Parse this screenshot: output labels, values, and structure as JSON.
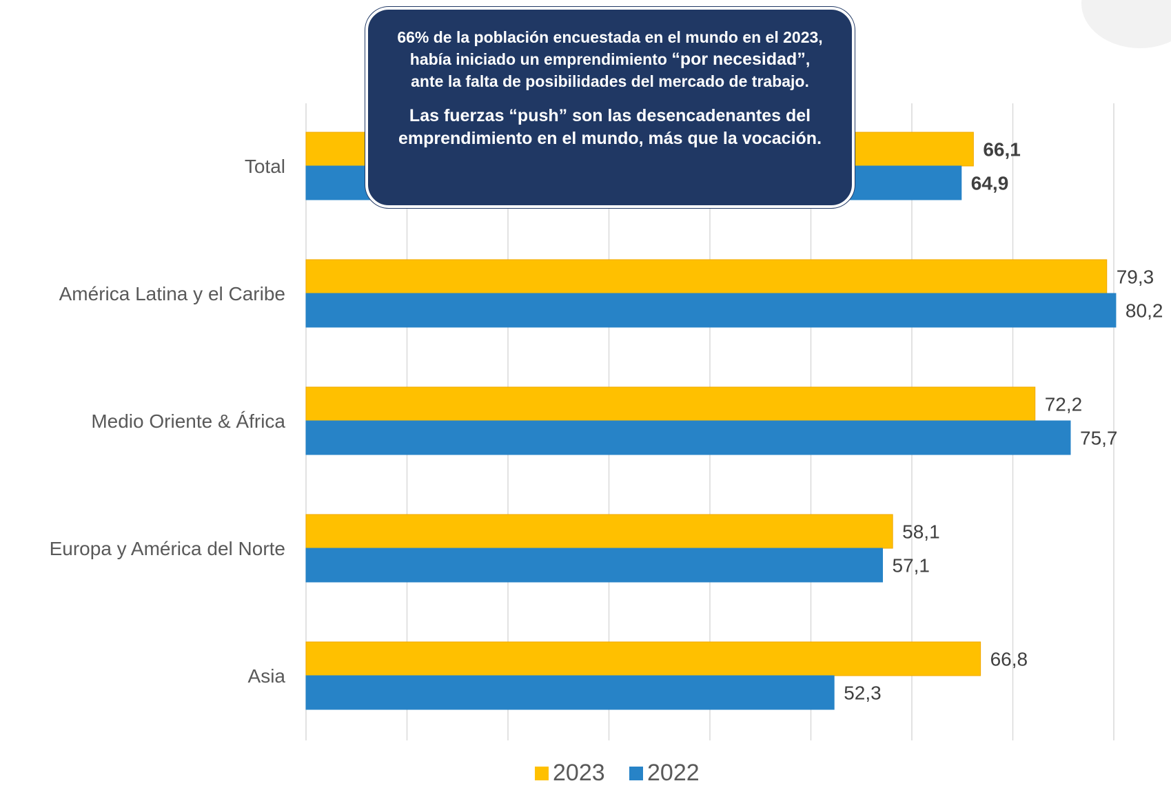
{
  "chart_data": {
    "type": "bar",
    "orientation": "horizontal",
    "categories": [
      "Total",
      "América Latina y el Caribe",
      "Medio Oriente & África",
      "Europa y América del Norte",
      "Asia"
    ],
    "series": [
      {
        "name": "2023",
        "color": "#FFC000",
        "values": [
          66.1,
          79.3,
          72.2,
          58.1,
          66.8
        ],
        "labels": [
          "66,1",
          "79,3",
          "72,2",
          "58,1",
          "66,8"
        ]
      },
      {
        "name": "2022",
        "color": "#2783C7",
        "values": [
          64.9,
          80.2,
          75.7,
          57.1,
          52.3
        ],
        "labels": [
          "64,9",
          "80,2",
          "75,7",
          "57,1",
          "52,3"
        ]
      }
    ],
    "xlim": [
      0,
      80
    ],
    "grid": true,
    "legend": "bottom",
    "highlight_label_color": "#C00000"
  },
  "callout": {
    "line1": "66% de la población encuestada en el mundo en el 2023, había iniciado un emprendimiento",
    "line2_bold": "“por necesidad”",
    "line2_rest": ", ante la falta de posibilidades del mercado de trabajo.",
    "paragraph2": "Las fuerzas “push” son las desencadenantes del emprendimiento en el mundo, más que la vocación."
  }
}
